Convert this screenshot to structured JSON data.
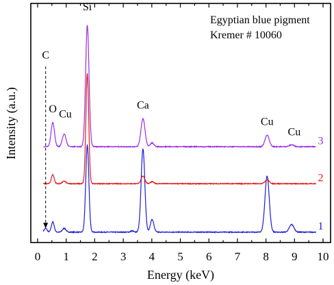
{
  "chart_data": {
    "type": "line",
    "xlabel": "Energy (keV)",
    "ylabel": "Intensity (a.u.)",
    "xlim": [
      -0.2,
      10.0
    ],
    "x_ticks": [
      0,
      1,
      2,
      3,
      4,
      5,
      6,
      7,
      8,
      9,
      10
    ],
    "y_ticks_shown": false,
    "grid": false,
    "annotation_lines": [
      "Egyptian blue pigment",
      "Kremer # 10060"
    ],
    "series": [
      {
        "name": "1",
        "color": "#1a1ad6",
        "baseline": 0.06,
        "peaks": [
          {
            "x": 0.28,
            "h": 0.03,
            "w": 0.05
          },
          {
            "x": 0.53,
            "h": 0.08,
            "w": 0.05
          },
          {
            "x": 0.93,
            "h": 0.03,
            "w": 0.06
          },
          {
            "x": 1.74,
            "h": 0.68,
            "w": 0.055
          },
          {
            "x": 3.31,
            "h": 0.01,
            "w": 0.05
          },
          {
            "x": 3.69,
            "h": 0.65,
            "w": 0.065
          },
          {
            "x": 4.01,
            "h": 0.1,
            "w": 0.06
          },
          {
            "x": 8.04,
            "h": 0.44,
            "w": 0.075
          },
          {
            "x": 8.9,
            "h": 0.06,
            "w": 0.08
          }
        ]
      },
      {
        "name": "2",
        "color": "#e01a1a",
        "baseline": 0.44,
        "peaks": [
          {
            "x": 0.53,
            "h": 0.07,
            "w": 0.05
          },
          {
            "x": 0.93,
            "h": 0.02,
            "w": 0.06
          },
          {
            "x": 1.74,
            "h": 0.86,
            "w": 0.05
          },
          {
            "x": 3.69,
            "h": 0.06,
            "w": 0.065
          },
          {
            "x": 4.01,
            "h": 0.015,
            "w": 0.06
          },
          {
            "x": 8.04,
            "h": 0.03,
            "w": 0.075
          }
        ]
      },
      {
        "name": "3",
        "color": "#9a2ce0",
        "baseline": 0.73,
        "peaks": [
          {
            "x": 0.53,
            "h": 0.19,
            "w": 0.06
          },
          {
            "x": 0.93,
            "h": 0.1,
            "w": 0.065
          },
          {
            "x": 1.74,
            "h": 0.95,
            "w": 0.06
          },
          {
            "x": 3.69,
            "h": 0.22,
            "w": 0.07
          },
          {
            "x": 4.01,
            "h": 0.03,
            "w": 0.06
          },
          {
            "x": 8.04,
            "h": 0.09,
            "w": 0.075
          },
          {
            "x": 8.9,
            "h": 0.015,
            "w": 0.08
          }
        ]
      }
    ],
    "peak_labels": [
      {
        "text": "Si",
        "x": 1.74,
        "y": 1.8
      },
      {
        "text": "O",
        "x": 0.53,
        "y": 1.0
      },
      {
        "text": "Cu",
        "x": 0.97,
        "y": 0.96
      },
      {
        "text": "Ca",
        "x": 3.69,
        "y": 1.03
      },
      {
        "text": "Cu",
        "x": 8.04,
        "y": 0.9
      },
      {
        "text": "Cu",
        "x": 8.99,
        "y": 0.82
      },
      {
        "text": "C",
        "x": 0.28,
        "y": 1.42
      }
    ],
    "dashed_arrow": {
      "x": 0.28,
      "y_from": 1.36,
      "y_to": 0.09
    }
  }
}
